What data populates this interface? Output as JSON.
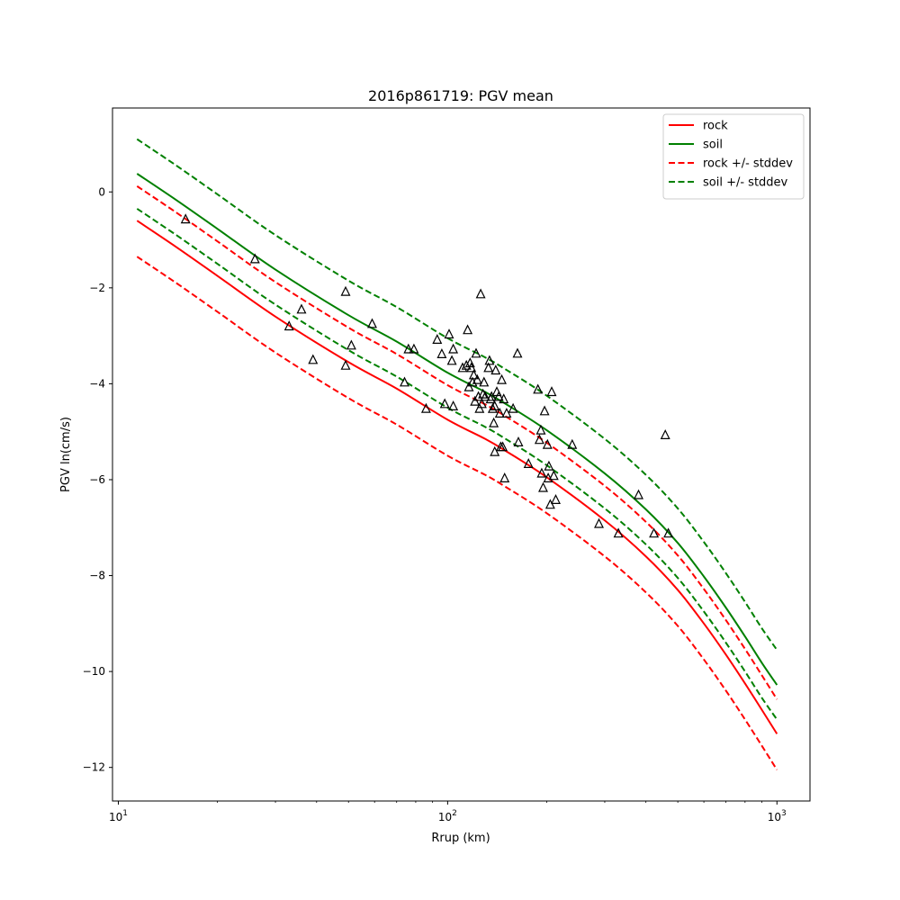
{
  "chart_data": {
    "type": "line",
    "title": "2016p861719: PGV mean",
    "xlabel": "Rrup (km)",
    "ylabel": "PGV ln(cm/s)",
    "xscale": "log",
    "xlim": [
      9.6,
      1260
    ],
    "ylim": [
      -12.7,
      1.75
    ],
    "x_ticks": [
      {
        "value": 10,
        "base": "10",
        "exp": "1"
      },
      {
        "value": 100,
        "base": "10",
        "exp": "2"
      },
      {
        "value": 1000,
        "base": "10",
        "exp": "3"
      }
    ],
    "y_ticks": [
      {
        "value": 0,
        "label": "0"
      },
      {
        "value": -2,
        "label": "−2"
      },
      {
        "value": -4,
        "label": "−4"
      },
      {
        "value": -6,
        "label": "−6"
      },
      {
        "value": -8,
        "label": "−8"
      },
      {
        "value": -10,
        "label": "−10"
      },
      {
        "value": -12,
        "label": "−12"
      }
    ],
    "grid": false,
    "legend_position": "top-right",
    "legend": [
      {
        "label": "rock",
        "color": "#ff0000",
        "style": "solid"
      },
      {
        "label": "soil",
        "color": "#008000",
        "style": "solid"
      },
      {
        "label": "rock +/- stddev",
        "color": "#ff0000",
        "style": "dashed"
      },
      {
        "label": "soil +/- stddev",
        "color": "#008000",
        "style": "dashed"
      }
    ],
    "curve_x": [
      11.4,
      15,
      20,
      30,
      50,
      70,
      100,
      130,
      150,
      200,
      300,
      400,
      500,
      600,
      700,
      800,
      900,
      1000
    ],
    "series": [
      {
        "name": "rock",
        "color": "#ff0000",
        "dash": false,
        "values": [
          -0.6,
          -1.15,
          -1.75,
          -2.6,
          -3.55,
          -4.1,
          -4.75,
          -5.15,
          -5.4,
          -5.95,
          -6.85,
          -7.6,
          -8.3,
          -9.0,
          -9.65,
          -10.25,
          -10.8,
          -11.3
        ]
      },
      {
        "name": "rock +stddev",
        "color": "#ff0000",
        "dash": true,
        "values": [
          0.12,
          -0.43,
          -1.03,
          -1.88,
          -2.83,
          -3.38,
          -4.03,
          -4.43,
          -4.68,
          -5.23,
          -6.13,
          -6.88,
          -7.58,
          -8.28,
          -8.93,
          -9.53,
          -10.08,
          -10.58
        ]
      },
      {
        "name": "rock -stddev",
        "color": "#ff0000",
        "dash": true,
        "values": [
          -1.35,
          -1.9,
          -2.5,
          -3.35,
          -4.3,
          -4.85,
          -5.5,
          -5.9,
          -6.15,
          -6.7,
          -7.6,
          -8.35,
          -9.05,
          -9.75,
          -10.4,
          -11.0,
          -11.55,
          -12.05
        ]
      },
      {
        "name": "soil",
        "color": "#008000",
        "dash": false,
        "values": [
          0.38,
          -0.17,
          -0.77,
          -1.62,
          -2.57,
          -3.12,
          -3.77,
          -4.17,
          -4.42,
          -4.97,
          -5.87,
          -6.62,
          -7.32,
          -8.02,
          -8.67,
          -9.27,
          -9.82,
          -10.28
        ]
      },
      {
        "name": "soil +stddev",
        "color": "#008000",
        "dash": true,
        "values": [
          1.1,
          0.55,
          -0.05,
          -0.9,
          -1.85,
          -2.4,
          -3.05,
          -3.45,
          -3.7,
          -4.25,
          -5.15,
          -5.9,
          -6.6,
          -7.3,
          -7.95,
          -8.55,
          -9.1,
          -9.55
        ]
      },
      {
        "name": "soil -stddev",
        "color": "#008000",
        "dash": true,
        "values": [
          -0.35,
          -0.9,
          -1.5,
          -2.35,
          -3.3,
          -3.85,
          -4.5,
          -4.9,
          -5.15,
          -5.7,
          -6.6,
          -7.35,
          -8.05,
          -8.75,
          -9.4,
          -10.0,
          -10.55,
          -11.0
        ]
      }
    ],
    "observations": [
      [
        16,
        -0.57
      ],
      [
        26,
        -1.4
      ],
      [
        33,
        -2.8
      ],
      [
        36,
        -2.45
      ],
      [
        39,
        -3.5
      ],
      [
        49,
        -2.08
      ],
      [
        49,
        -3.62
      ],
      [
        51,
        -3.2
      ],
      [
        59,
        -2.75
      ],
      [
        74,
        -3.97
      ],
      [
        76,
        -3.28
      ],
      [
        79,
        -3.28
      ],
      [
        86,
        -4.52
      ],
      [
        93,
        -3.08
      ],
      [
        96,
        -3.38
      ],
      [
        98,
        -4.42
      ],
      [
        101,
        -2.97
      ],
      [
        103,
        -3.52
      ],
      [
        104,
        -3.28
      ],
      [
        104,
        -4.47
      ],
      [
        111,
        -3.67
      ],
      [
        114,
        -3.62
      ],
      [
        115,
        -2.88
      ],
      [
        116,
        -4.07
      ],
      [
        117,
        -3.57
      ],
      [
        118,
        -3.67
      ],
      [
        119,
        -3.97
      ],
      [
        120,
        -3.82
      ],
      [
        121,
        -4.37
      ],
      [
        122,
        -3.37
      ],
      [
        123,
        -3.92
      ],
      [
        124,
        -4.27
      ],
      [
        125,
        -4.52
      ],
      [
        126,
        -2.13
      ],
      [
        127,
        -4.42
      ],
      [
        128,
        -4.22
      ],
      [
        129,
        -3.97
      ],
      [
        130,
        -4.27
      ],
      [
        133,
        -3.67
      ],
      [
        134,
        -3.52
      ],
      [
        135,
        -4.32
      ],
      [
        136,
        -4.27
      ],
      [
        137,
        -4.52
      ],
      [
        138,
        -4.82
      ],
      [
        139,
        -4.47
      ],
      [
        139,
        -5.42
      ],
      [
        140,
        -3.72
      ],
      [
        141,
        -4.17
      ],
      [
        143,
        -4.27
      ],
      [
        144,
        -4.62
      ],
      [
        145,
        -5.32
      ],
      [
        146,
        -3.92
      ],
      [
        147,
        -5.32
      ],
      [
        148,
        -4.32
      ],
      [
        149,
        -5.97
      ],
      [
        151,
        -4.62
      ],
      [
        158,
        -4.52
      ],
      [
        163,
        -3.37
      ],
      [
        164,
        -5.22
      ],
      [
        176,
        -5.67
      ],
      [
        188,
        -4.12
      ],
      [
        190,
        -5.17
      ],
      [
        192,
        -4.97
      ],
      [
        193,
        -5.87
      ],
      [
        195,
        -6.17
      ],
      [
        197,
        -4.57
      ],
      [
        201,
        -5.27
      ],
      [
        202,
        -5.97
      ],
      [
        203,
        -5.72
      ],
      [
        205,
        -6.52
      ],
      [
        207,
        -4.17
      ],
      [
        210,
        -5.92
      ],
      [
        213,
        -6.42
      ],
      [
        239,
        -5.27
      ],
      [
        288,
        -6.92
      ],
      [
        330,
        -7.12
      ],
      [
        380,
        -6.32
      ],
      [
        423,
        -7.12
      ],
      [
        458,
        -5.07
      ],
      [
        468,
        -7.12
      ]
    ]
  }
}
